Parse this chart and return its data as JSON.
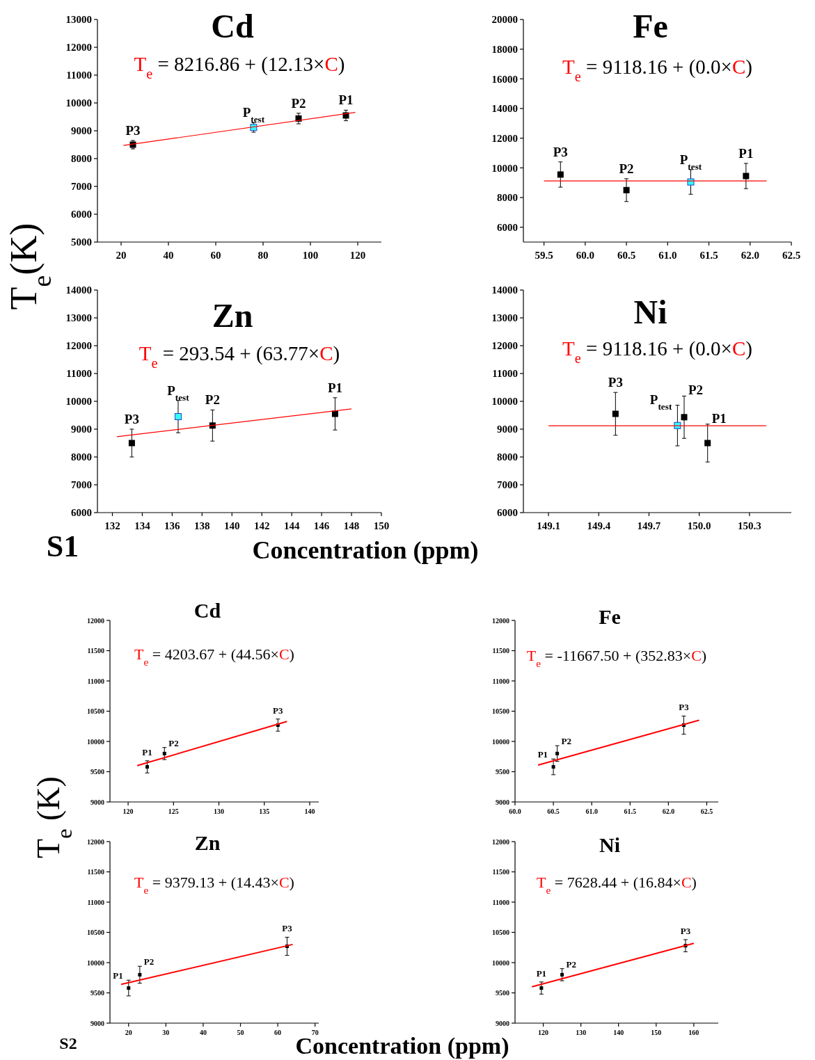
{
  "chart_data": [
    {
      "type": "scatter",
      "title": "Cd",
      "subtitle": "T$_{e}$ = 8216.86 + (12.13×C)",
      "ylabel": "T$_{e}$(K)",
      "marker": "square",
      "xlim": [
        10,
        130
      ],
      "xticks": [
        20,
        40,
        60,
        80,
        100,
        120
      ],
      "ylim": [
        5000,
        13000
      ],
      "yticks": [
        5000,
        6000,
        7000,
        8000,
        9000,
        10000,
        11000,
        12000,
        13000
      ],
      "series": [
        {
          "name": "P3",
          "color": "#000000",
          "x": [
            25
          ],
          "values": [
            8500
          ],
          "errors": [
            150
          ]
        },
        {
          "name": "P$_{test}$",
          "color": "#33ffff",
          "x": [
            76
          ],
          "values": [
            9120
          ],
          "errors": [
            170
          ]
        },
        {
          "name": "P2",
          "color": "#000000",
          "x": [
            95
          ],
          "values": [
            9440
          ],
          "errors": [
            190
          ]
        },
        {
          "name": "P1",
          "color": "#000000",
          "x": [
            115
          ],
          "values": [
            9550
          ],
          "errors": [
            190
          ]
        },
        {
          "type": "line",
          "color": "#ff0000",
          "marker": "none",
          "x": [
            21,
            119
          ],
          "values": [
            8470,
            9660
          ]
        }
      ]
    },
    {
      "type": "scatter",
      "title": "Fe",
      "subtitle": "T$_{e}$ = 9118.16 + (0.0×C)",
      "marker": "square",
      "xlim": [
        59.25,
        62.5
      ],
      "xticks": [
        59.5,
        {
          "value": 60,
          "label": "60.0"
        },
        60.5,
        {
          "value": 61,
          "label": "61.0"
        },
        61.5,
        {
          "value": 62,
          "label": "62.0"
        },
        62.5
      ],
      "ylim": [
        5000,
        20000
      ],
      "yticks": [
        6000,
        8000,
        10000,
        12000,
        14000,
        16000,
        18000,
        20000
      ],
      "series": [
        {
          "name": "P3",
          "color": "#000000",
          "x": [
            59.7
          ],
          "values": [
            9550
          ],
          "errors": [
            850
          ]
        },
        {
          "name": "P2",
          "color": "#000000",
          "x": [
            60.5
          ],
          "values": [
            8500
          ],
          "errors": [
            770
          ]
        },
        {
          "name": "P$_{test}$",
          "color": "#33ffff",
          "x": [
            61.28
          ],
          "values": [
            9050
          ],
          "errors": [
            830
          ]
        },
        {
          "name": "P1",
          "color": "#000000",
          "x": [
            61.95
          ],
          "values": [
            9450
          ],
          "errors": [
            850
          ]
        },
        {
          "type": "line",
          "color": "#ff0000",
          "marker": "none",
          "x": [
            59.5,
            62.2
          ],
          "values": [
            9120,
            9120
          ]
        }
      ]
    },
    {
      "type": "scatter",
      "title": "Zn",
      "subtitle": "T$_{e}$ = 293.54 + (63.77×C)",
      "xlabel": "Concentration (ppm)",
      "annotations": [
        "S1"
      ],
      "marker": "square",
      "xlim": [
        131,
        150
      ],
      "xticks": [
        132,
        134,
        136,
        138,
        140,
        142,
        144,
        146,
        148,
        150
      ],
      "ylim": [
        6000,
        14000
      ],
      "yticks": [
        6000,
        7000,
        8000,
        9000,
        10000,
        11000,
        12000,
        13000,
        14000
      ],
      "series": [
        {
          "name": "P3",
          "color": "#000000",
          "x": [
            133.3
          ],
          "values": [
            8500
          ],
          "errors": [
            500
          ]
        },
        {
          "name": "P$_{test}$",
          "color": "#33ffff",
          "x": [
            136.4
          ],
          "values": [
            9450
          ],
          "errors": [
            580
          ]
        },
        {
          "name": "P2",
          "color": "#000000",
          "x": [
            138.7
          ],
          "values": [
            9130
          ],
          "errors": [
            560
          ]
        },
        {
          "name": "P1",
          "color": "#000000",
          "x": [
            146.9
          ],
          "values": [
            9550
          ],
          "errors": [
            580
          ]
        },
        {
          "type": "line",
          "color": "#ff0000",
          "marker": "none",
          "x": [
            132.3,
            148
          ],
          "values": [
            8730,
            9730
          ]
        }
      ]
    },
    {
      "type": "scatter",
      "title": "Ni",
      "subtitle": "T$_{e}$ = 9118.16 + (0.0×C)",
      "marker": "square",
      "xlim": [
        148.95,
        150.55
      ],
      "xticks": [
        149.1,
        149.4,
        149.7,
        {
          "value": 150,
          "label": "150.0"
        },
        150.3
      ],
      "ylim": [
        6000,
        14000
      ],
      "yticks": [
        6000,
        7000,
        8000,
        9000,
        10000,
        11000,
        12000,
        13000,
        14000
      ],
      "series": [
        {
          "name": "P3",
          "color": "#000000",
          "x": [
            149.5
          ],
          "values": [
            9550
          ],
          "errors": [
            770
          ]
        },
        {
          "name": "P$_{test}$",
          "color": "#33ffff",
          "x": [
            149.87
          ],
          "values": [
            9130
          ],
          "errors": [
            730
          ]
        },
        {
          "name": "P2",
          "color": "#000000",
          "x": [
            149.91
          ],
          "values": [
            9430
          ],
          "errors": [
            760
          ]
        },
        {
          "name": "P1",
          "color": "#000000",
          "x": [
            150.05
          ],
          "values": [
            8500
          ],
          "errors": [
            680
          ]
        },
        {
          "type": "line",
          "color": "#ff0000",
          "marker": "none",
          "x": [
            149.1,
            150.4
          ],
          "values": [
            9120,
            9120
          ]
        }
      ]
    },
    {
      "type": "scatter",
      "title": "Cd",
      "subtitle": "T$_{e}$ = 4203.67 + (44.56×C)",
      "ylabel": "T$_{e}$ (K)",
      "marker": "square",
      "xlim": [
        118,
        141
      ],
      "xticks": [
        120,
        125,
        130,
        135,
        140
      ],
      "ylim": [
        9000,
        12000
      ],
      "yticks": [
        9000,
        9500,
        10000,
        10500,
        11000,
        11500,
        12000
      ],
      "series": [
        {
          "name": "P1",
          "color": "#000000",
          "x": [
            122.1
          ],
          "values": [
            9580
          ],
          "errors": [
            100
          ]
        },
        {
          "name": "P2",
          "color": "#000000",
          "x": [
            124
          ],
          "values": [
            9800
          ],
          "errors": [
            100
          ]
        },
        {
          "name": "P3",
          "color": "#000000",
          "x": [
            136.5
          ],
          "values": [
            10270
          ],
          "errors": [
            100
          ]
        },
        {
          "type": "line",
          "color": "#ff0000",
          "marker": "none",
          "x": [
            121,
            137.5
          ],
          "values": [
            9600,
            10330
          ]
        }
      ]
    },
    {
      "type": "scatter",
      "title": "Fe",
      "subtitle": "T$_{e}$ = -11667.50 + (352.83×C)",
      "marker": "square",
      "xlim": [
        60,
        62.65
      ],
      "xticks": [
        {
          "value": 60,
          "label": "60.0"
        },
        60.5,
        {
          "value": 61,
          "label": "61.0"
        },
        61.5,
        {
          "value": 62,
          "label": "62.0"
        },
        62.5
      ],
      "ylim": [
        9000,
        12000
      ],
      "yticks": [
        9000,
        9500,
        10000,
        10500,
        11000,
        11500,
        12000
      ],
      "series": [
        {
          "name": "P1",
          "color": "#000000",
          "x": [
            60.5
          ],
          "values": [
            9580
          ],
          "errors": [
            130
          ]
        },
        {
          "name": "P2",
          "color": "#000000",
          "x": [
            60.55
          ],
          "values": [
            9800
          ],
          "errors": [
            130
          ]
        },
        {
          "name": "P3",
          "color": "#000000",
          "x": [
            62.2
          ],
          "values": [
            10270
          ],
          "errors": [
            150
          ]
        },
        {
          "type": "line",
          "color": "#ff0000",
          "marker": "none",
          "x": [
            60.3,
            62.4
          ],
          "values": [
            9610,
            10350
          ]
        }
      ]
    },
    {
      "type": "scatter",
      "title": "Zn",
      "subtitle": "T$_{e}$ = 9379.13 + (14.43×C)",
      "xlabel": "Concentration (ppm)",
      "annotations": [
        "S2"
      ],
      "marker": "square",
      "xlim": [
        15,
        71
      ],
      "xticks": [
        20,
        30,
        40,
        50,
        60,
        70
      ],
      "ylim": [
        9000,
        12000
      ],
      "yticks": [
        9000,
        9500,
        10000,
        10500,
        11000,
        11500,
        12000
      ],
      "series": [
        {
          "name": "P1",
          "color": "#000000",
          "x": [
            20
          ],
          "values": [
            9580
          ],
          "errors": [
            130
          ]
        },
        {
          "name": "P2",
          "color": "#000000",
          "x": [
            23
          ],
          "values": [
            9800
          ],
          "errors": [
            140
          ]
        },
        {
          "name": "P3",
          "color": "#000000",
          "x": [
            62.5
          ],
          "values": [
            10270
          ],
          "errors": [
            150
          ]
        },
        {
          "type": "line",
          "color": "#ff0000",
          "marker": "none",
          "x": [
            18,
            64
          ],
          "values": [
            9640,
            10300
          ]
        }
      ]
    },
    {
      "type": "scatter",
      "title": "Ni",
      "subtitle": "T$_{e}$ = 7628.44 + (16.84×C)",
      "marker": "square",
      "xlim": [
        112.5,
        166.5
      ],
      "xticks": [
        120,
        130,
        140,
        150,
        160
      ],
      "ylim": [
        9000,
        12000
      ],
      "yticks": [
        9000,
        9500,
        10000,
        10500,
        11000,
        11500,
        12000
      ],
      "series": [
        {
          "name": "P1",
          "color": "#000000",
          "x": [
            119.5
          ],
          "values": [
            9580
          ],
          "errors": [
            100
          ]
        },
        {
          "name": "P2",
          "color": "#000000",
          "x": [
            125
          ],
          "values": [
            9800
          ],
          "errors": [
            100
          ]
        },
        {
          "name": "P3",
          "color": "#000000",
          "x": [
            157.8
          ],
          "values": [
            10280
          ],
          "errors": [
            100
          ]
        },
        {
          "type": "line",
          "color": "#ff0000",
          "marker": "none",
          "x": [
            117,
            160
          ],
          "values": [
            9600,
            10320
          ]
        }
      ]
    }
  ]
}
